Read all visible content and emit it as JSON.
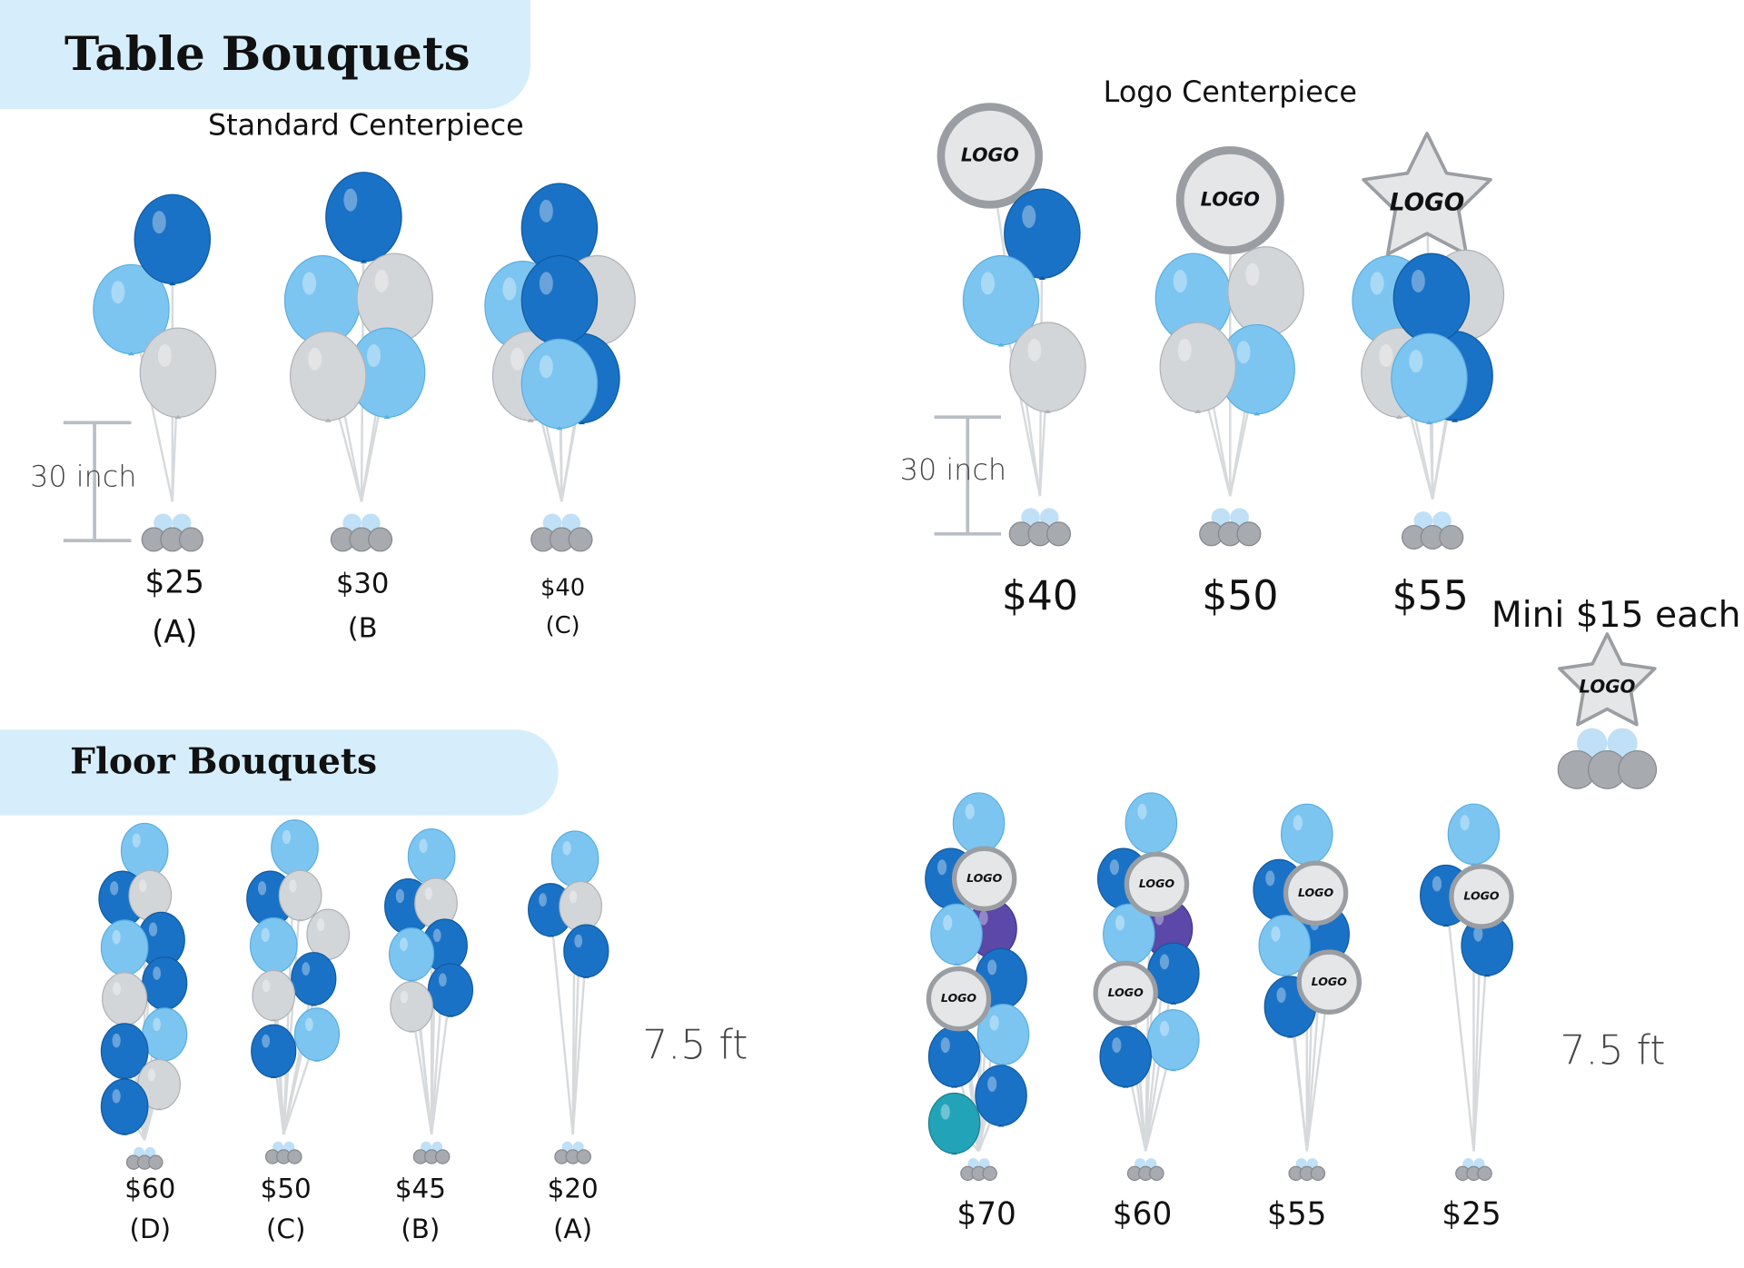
{
  "header": {
    "title": "Table Bouquets"
  },
  "table_bouquets": {
    "standard": {
      "title": "Standard Centerpiece",
      "height_label": "30 inch",
      "items": [
        {
          "price": "$25",
          "label": "(A)"
        },
        {
          "price": "$30",
          "label": "(B"
        },
        {
          "price": "$40",
          "label": "(C)"
        }
      ]
    },
    "logo": {
      "title": "Logo Centerpiece",
      "height_label": "30 inch",
      "items": [
        {
          "price": "$40"
        },
        {
          "price": "$50"
        },
        {
          "price": "$55"
        }
      ]
    },
    "mini": "Mini $15 each"
  },
  "floor_bouquets": {
    "title": "Floor Bouquets",
    "standard": {
      "height_label": "7.5 ft",
      "items": [
        {
          "price": "$60",
          "label": "(D)"
        },
        {
          "price": "$50",
          "label": "(C)"
        },
        {
          "price": "$45",
          "label": "(B)"
        },
        {
          "price": "$20",
          "label": "(A)"
        }
      ]
    },
    "logo": {
      "height_label": "7.5 ft",
      "items": [
        {
          "price": "$70"
        },
        {
          "price": "$60"
        },
        {
          "price": "$55"
        },
        {
          "price": "$25"
        }
      ]
    }
  },
  "logo_text": "LOGO"
}
